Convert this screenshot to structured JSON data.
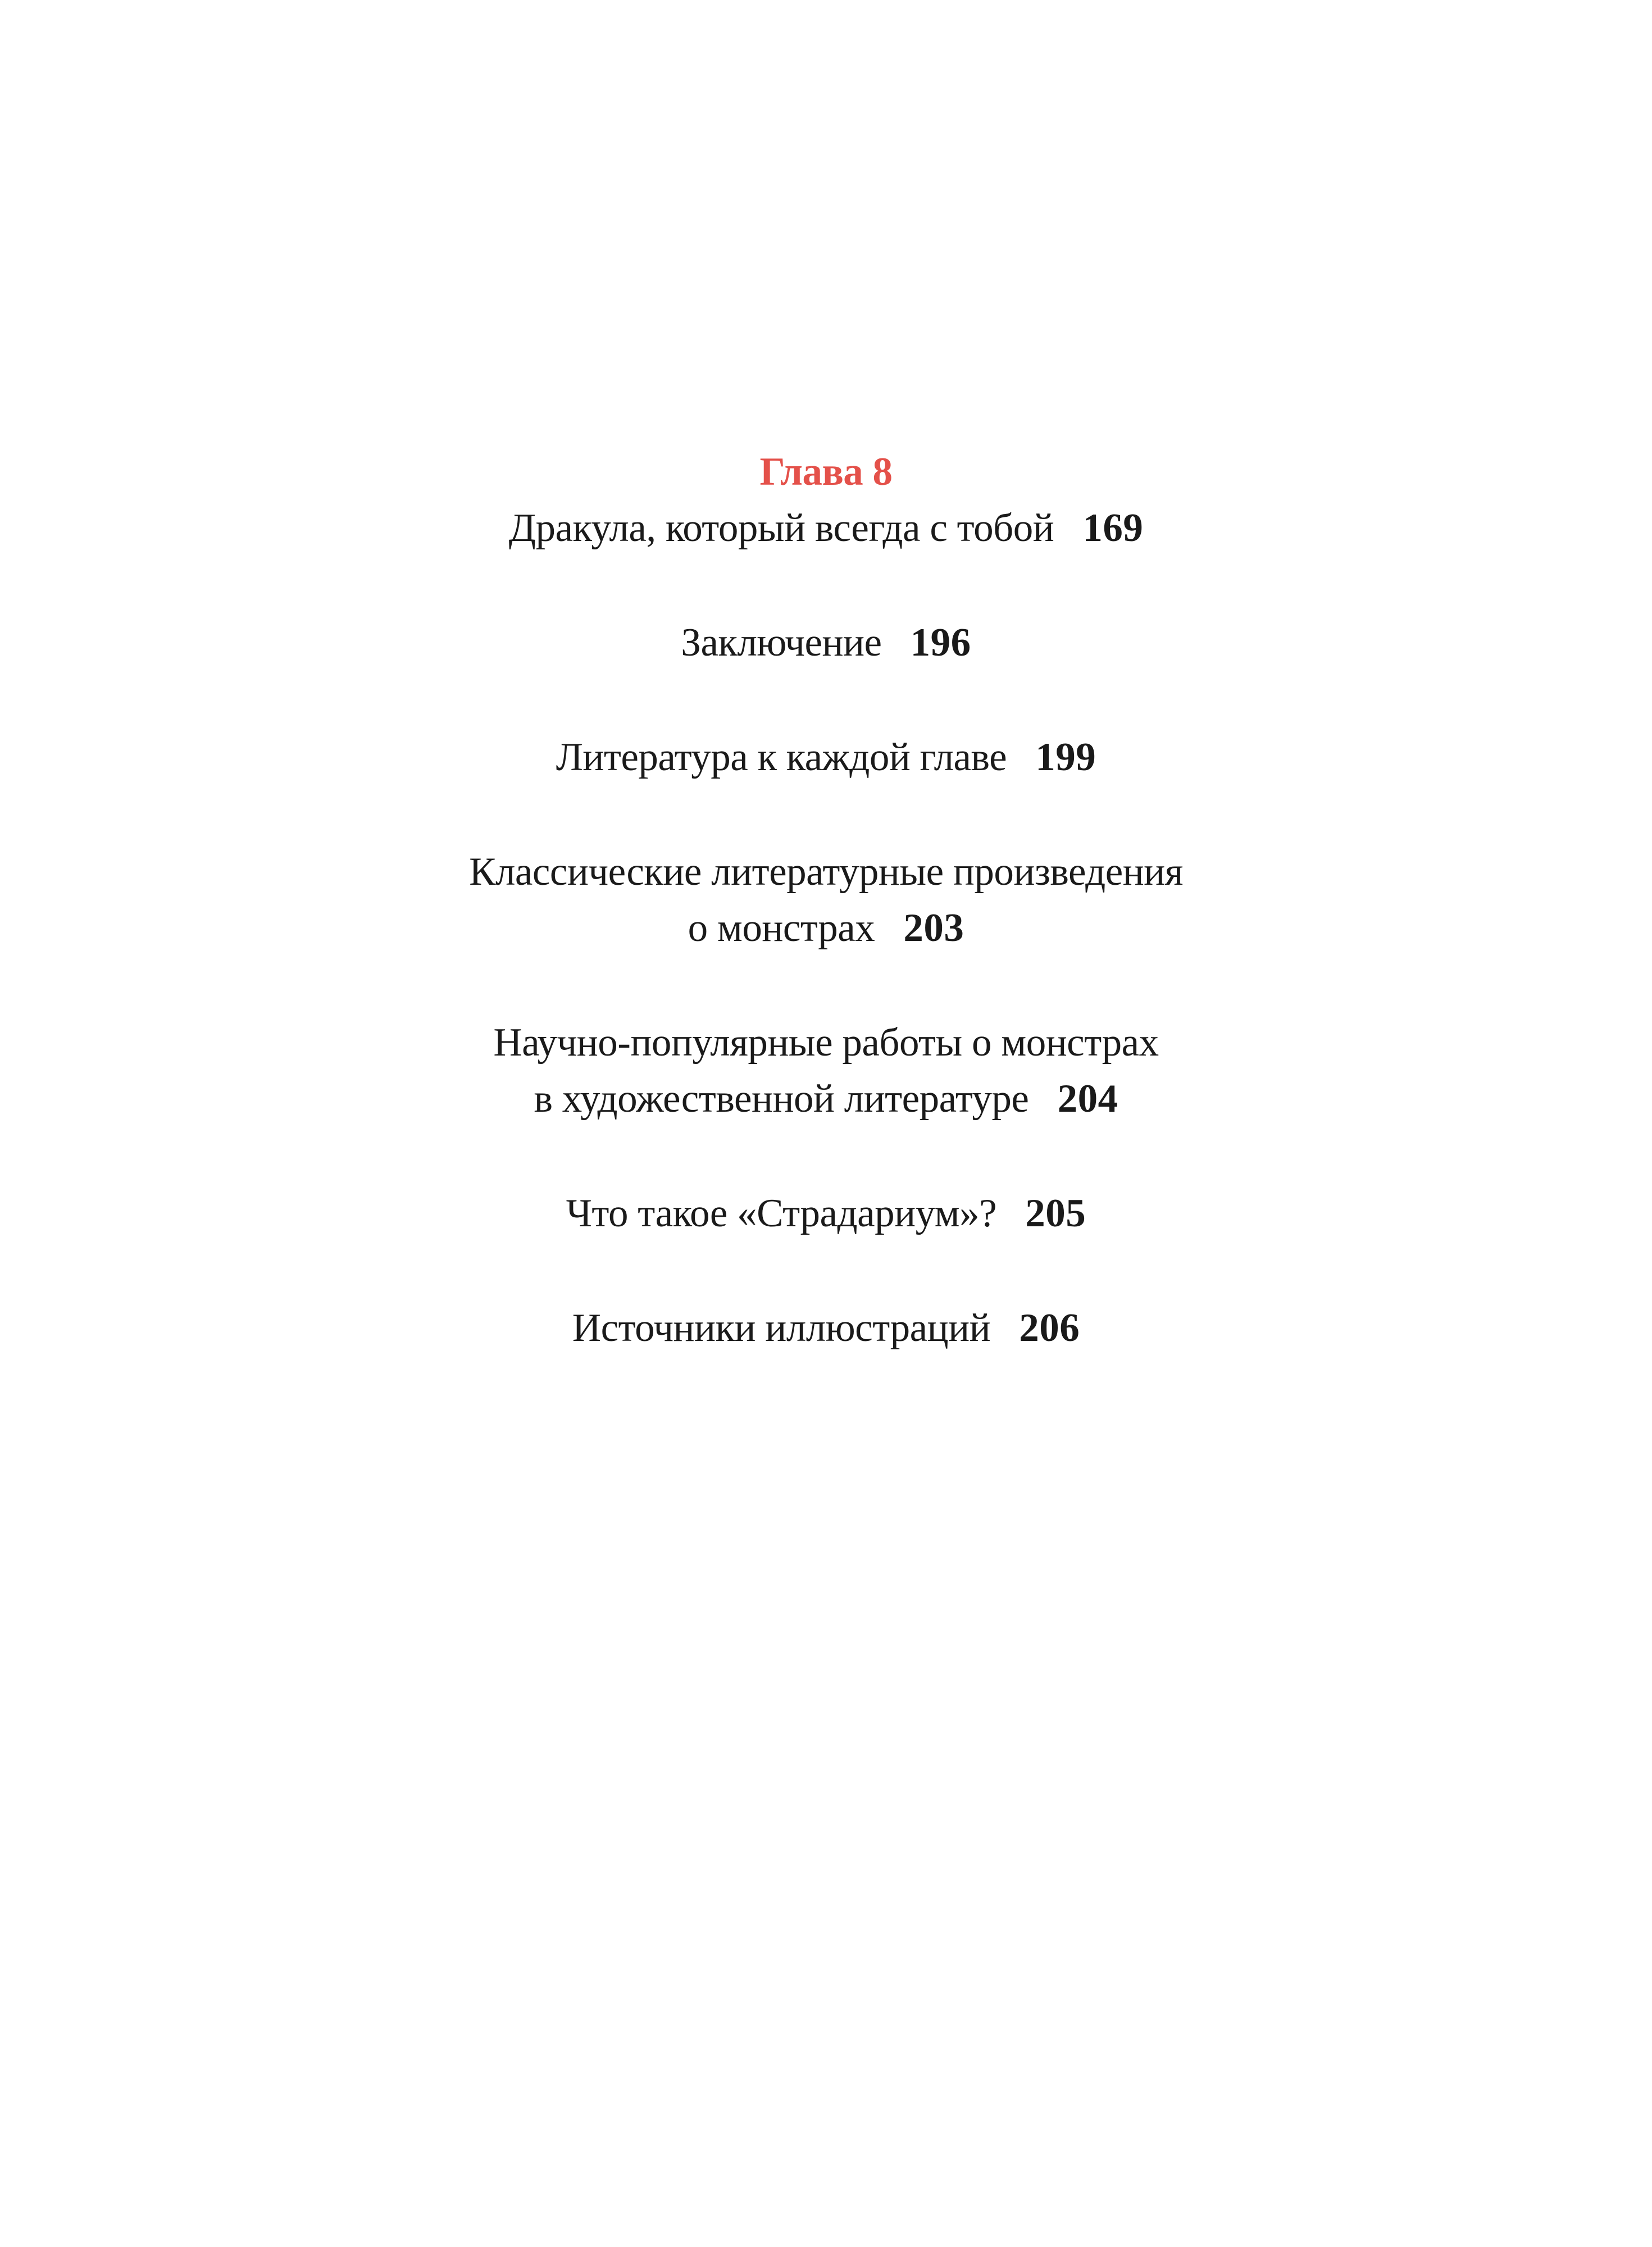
{
  "page": {
    "background": "#ffffff",
    "text_color": "#1a1a1a",
    "accent_color": "#e4514a"
  },
  "toc": {
    "chapter_label": "Глава 8",
    "entries": [
      {
        "line1": "Дракула, который всегда с тобой",
        "page": "169"
      },
      {
        "line1": "Заключение",
        "page": "196"
      },
      {
        "line1": "Литература к каждой главе",
        "page": "199"
      },
      {
        "line1": "Классические литературные произведения",
        "line2": "о монстрах",
        "page": "203"
      },
      {
        "line1": "Научно-популярные работы о монстрах",
        "line2": "в художественной литературе",
        "page": "204"
      },
      {
        "line1": "Что такое «Страдариум»?",
        "page": "205"
      },
      {
        "line1": "Источники иллюстраций",
        "page": "206"
      }
    ]
  }
}
